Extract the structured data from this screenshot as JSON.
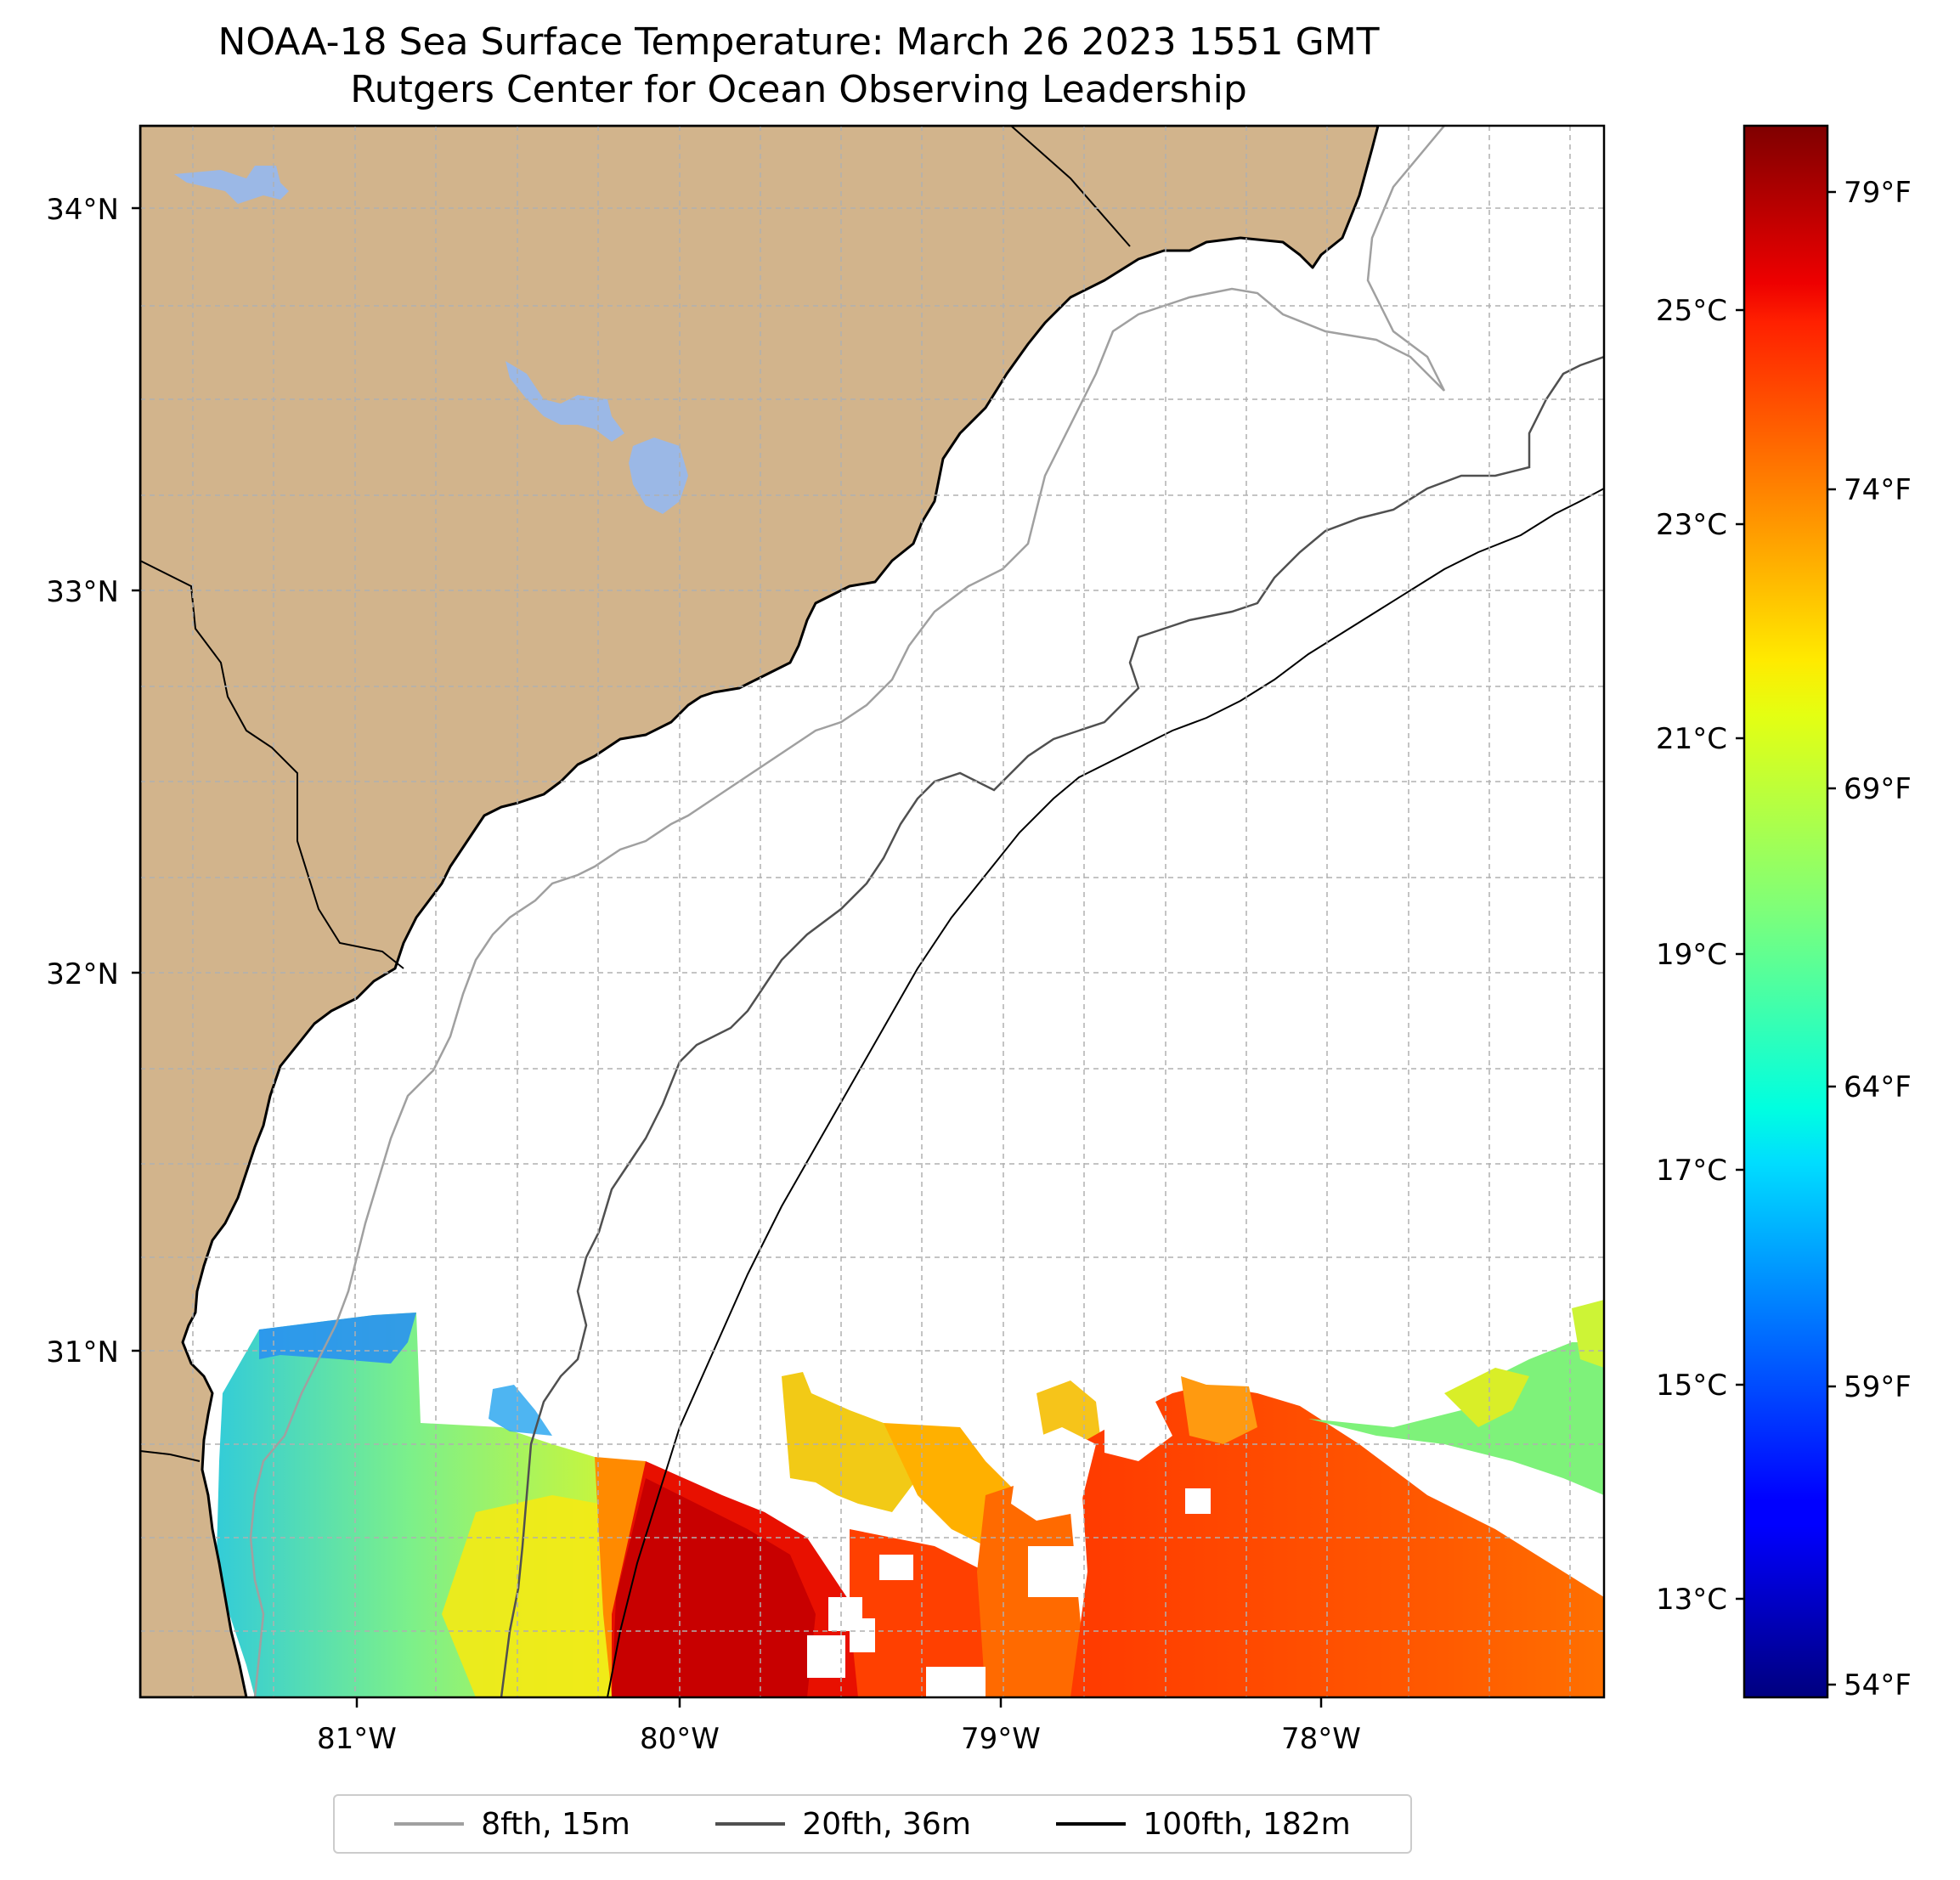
{
  "title": {
    "line1": "NOAA-18 Sea Surface Temperature: March 26 2023 1551 GMT",
    "line2": "Rutgers Center for Ocean Observing Leadership"
  },
  "map": {
    "lat_ticks": [
      "34°N",
      "33°N",
      "32°N",
      "31°N"
    ],
    "lon_ticks": [
      "81°W",
      "80°W",
      "79°W",
      "78°W"
    ],
    "land_color": "#d2b48c",
    "lake_color": "#9bb8e6",
    "gridlines": true
  },
  "colorbar": {
    "celsius_ticks": [
      "25°C",
      "23°C",
      "21°C",
      "19°C",
      "17°C",
      "15°C",
      "13°C"
    ],
    "fahrenheit_ticks": [
      "79°F",
      "74°F",
      "69°F",
      "64°F",
      "59°F",
      "54°F"
    ],
    "colormap": "jet",
    "range_f": [
      53.5,
      81.0
    ]
  },
  "legend": {
    "items": [
      {
        "label": "8fth, 15m",
        "color": "#a0a0a0"
      },
      {
        "label": "20fth, 36m",
        "color": "#505050"
      },
      {
        "label": "100fth, 182m",
        "color": "#000000"
      }
    ]
  }
}
